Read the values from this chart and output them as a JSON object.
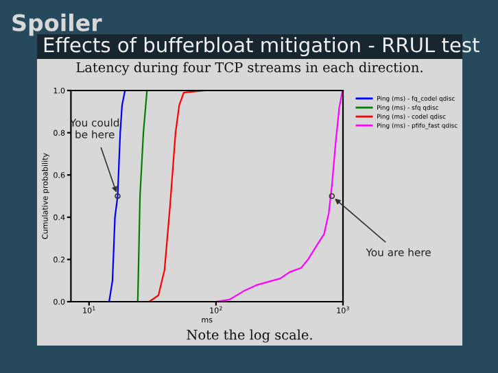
{
  "chart_data": {
    "type": "line",
    "title": "Spoiler",
    "subtitle": "Effects of bufferbloat mitigation - RRUL test",
    "xlabel": "ms",
    "ylabel": "Cumulative probability",
    "log": "x",
    "xlim": [
      7.2,
      1000
    ],
    "ylim": [
      0,
      1.0
    ],
    "xticks": [
      {
        "value": 10,
        "label": "10$^{1}$"
      },
      {
        "value": 100,
        "label": "10$^{2}$"
      },
      {
        "value": 1000,
        "label": "10$^{3}$"
      }
    ],
    "yticks": [
      {
        "value": 0,
        "label": "0.0"
      },
      0.2,
      0.4,
      0.6,
      0.8,
      {
        "value": 1.0,
        "label": "1.0"
      }
    ],
    "grid": false,
    "legend": "top right",
    "marker": "none",
    "line_style": "solid",
    "series": [
      {
        "name": "Ping (ms) - fq_codel qdisc",
        "color": "#0000ff",
        "x": [
          7.2,
          14.4,
          15.3,
          16.0,
          16.8,
          17.6,
          18.2,
          19.2
        ],
        "values": [
          0,
          0,
          0.1,
          0.4,
          0.5,
          0.8,
          0.93,
          1.0
        ]
      },
      {
        "name": "Ping (ms) - sfq qdisc",
        "color": "#008000",
        "x": [
          7.2,
          24.2,
          25.2,
          26.8,
          28.6
        ],
        "values": [
          0,
          0,
          0.5,
          0.8,
          1.0
        ]
      },
      {
        "name": "Ping (ms) - codel qdisc",
        "color": "#ff0000",
        "x": [
          7.2,
          29.8,
          35.2,
          39.3,
          43.4,
          48.0,
          51.3,
          55.7,
          81
        ],
        "values": [
          0,
          0,
          0.03,
          0.15,
          0.45,
          0.8,
          0.93,
          0.99,
          1.0
        ]
      },
      {
        "name": "Ping (ms) - pfifo_fast qdisc",
        "color": "#ff00ff",
        "x": [
          51,
          100,
          128,
          165,
          212,
          321,
          380,
          468,
          531,
          627,
          710,
          773,
          818,
          875,
          935,
          991
        ],
        "values": [
          0,
          0,
          0.01,
          0.05,
          0.08,
          0.11,
          0.14,
          0.16,
          0.2,
          0.27,
          0.32,
          0.42,
          0.55,
          0.75,
          0.92,
          1.0
        ]
      }
    ],
    "annotations": [
      "Latency during four TCP streams in each direction.",
      "Note the log scale.",
      {
        "text": "You could\nbe here",
        "x": 16.8,
        "y": 0.5
      },
      {
        "text": "You are here",
        "x": 818,
        "y": 0.5
      }
    ]
  }
}
